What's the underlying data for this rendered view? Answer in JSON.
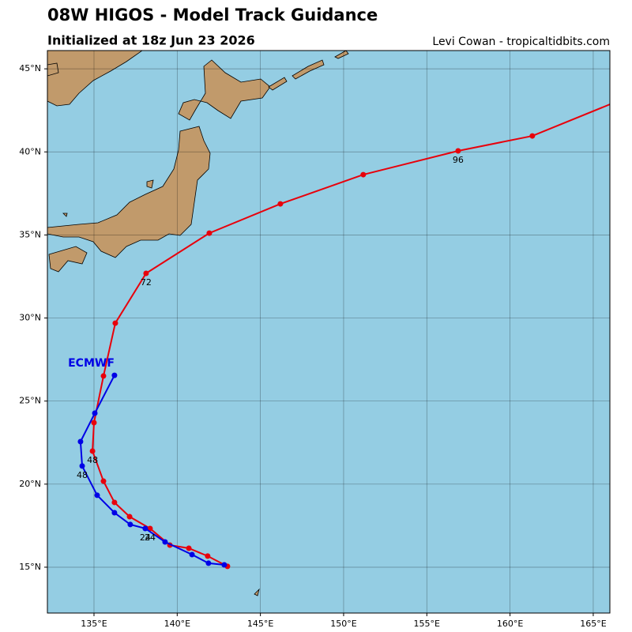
{
  "chart_data": {
    "type": "line",
    "title": "08W HIGOS - Model Track Guidance",
    "subtitle": "Initialized at 18z Jun 23 2026",
    "credit": "Levi Cowan - tropicaltidbits.com",
    "xlim": [
      132.2,
      166.0
    ],
    "ylim": [
      12.24,
      46.1
    ],
    "xticks": [
      {
        "value": 135,
        "label": "135°E"
      },
      {
        "value": 140,
        "label": "140°E"
      },
      {
        "value": 145,
        "label": "145°E"
      },
      {
        "value": 150,
        "label": "150°E"
      },
      {
        "value": 155,
        "label": "155°E"
      },
      {
        "value": 160,
        "label": "160°E"
      },
      {
        "value": 165,
        "label": "165°E"
      }
    ],
    "yticks": [
      {
        "value": 15,
        "label": "15°N"
      },
      {
        "value": 20,
        "label": "20°N"
      },
      {
        "value": 25,
        "label": "25°N"
      },
      {
        "value": 30,
        "label": "30°N"
      },
      {
        "value": 35,
        "label": "35°N"
      },
      {
        "value": 40,
        "label": "40°N"
      },
      {
        "value": 45,
        "label": "45°N"
      }
    ],
    "grid": true,
    "series": [
      {
        "color": "#e8000b",
        "x": [
          143.02,
          141.83,
          140.7,
          139.56,
          138.37,
          137.14,
          136.23,
          135.57,
          134.91,
          135.0,
          135.57,
          136.28,
          138.13,
          141.93,
          146.2,
          151.18,
          156.88,
          161.34,
          167.0
        ],
        "values": [
          15.05,
          15.67,
          16.14,
          16.33,
          17.33,
          18.04,
          18.9,
          20.18,
          21.99,
          23.7,
          26.51,
          29.69,
          32.69,
          35.11,
          36.87,
          38.63,
          40.06,
          40.96,
          43.27
        ],
        "point_labels": [
          null,
          null,
          null,
          null,
          "24",
          null,
          null,
          null,
          "48",
          null,
          null,
          null,
          "72",
          null,
          null,
          null,
          "96",
          null,
          null
        ]
      },
      {
        "name": "ECMWF",
        "color": "#0000e6",
        "x": [
          142.83,
          141.88,
          140.89,
          139.27,
          138.08,
          137.18,
          136.23,
          135.19,
          134.29,
          134.19,
          135.05,
          136.23
        ],
        "values": [
          15.14,
          15.24,
          15.76,
          16.52,
          17.33,
          17.57,
          18.28,
          19.33,
          21.09,
          22.56,
          24.27,
          26.55
        ],
        "point_labels": [
          null,
          null,
          null,
          null,
          "24",
          null,
          null,
          null,
          "48",
          null,
          null,
          null
        ]
      }
    ]
  }
}
